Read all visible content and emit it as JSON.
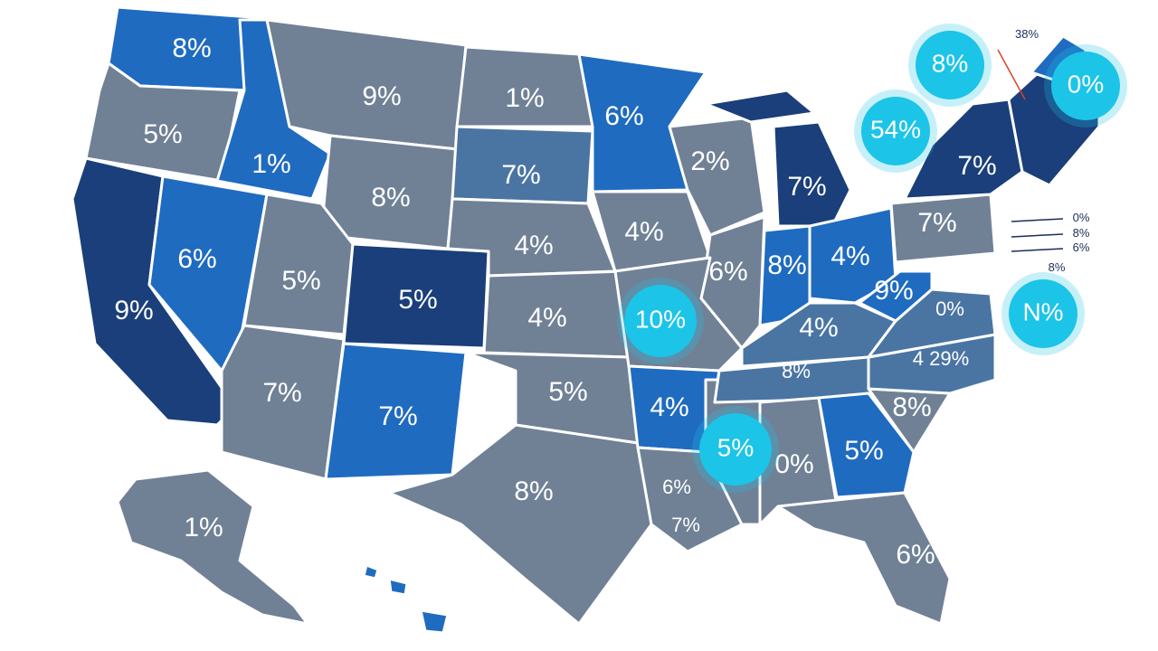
{
  "colors": {
    "gray": "#708196",
    "light_blue": "#1f6bc0",
    "mid_blue": "#4a75a3",
    "dark_blue": "#1a3f7a",
    "highlight": "#1cc4e8",
    "border": "#ffffff"
  },
  "states": [
    {
      "id": "WA",
      "label": "8%"
    },
    {
      "id": "OR",
      "label": "5%"
    },
    {
      "id": "CA",
      "label": "9%"
    },
    {
      "id": "ID",
      "label": "1%"
    },
    {
      "id": "NV",
      "label": "6%"
    },
    {
      "id": "MT",
      "label": "9%"
    },
    {
      "id": "WY",
      "label": "8%"
    },
    {
      "id": "UT",
      "label": "5%"
    },
    {
      "id": "AZ",
      "label": "7%"
    },
    {
      "id": "CO",
      "label": "5%"
    },
    {
      "id": "NM",
      "label": "7%"
    },
    {
      "id": "ND",
      "label": "1%"
    },
    {
      "id": "SD",
      "label": "7%"
    },
    {
      "id": "NE",
      "label": "4%"
    },
    {
      "id": "KS",
      "label": "4%"
    },
    {
      "id": "OK",
      "label": "5%"
    },
    {
      "id": "TX",
      "label": "8%"
    },
    {
      "id": "MN",
      "label": "6%"
    },
    {
      "id": "IA",
      "label": "4%"
    },
    {
      "id": "AR",
      "label": "4%"
    },
    {
      "id": "LA",
      "label": "7%"
    },
    {
      "id": "MS",
      "label": "6%"
    },
    {
      "id": "WI",
      "label": "2%"
    },
    {
      "id": "IL",
      "label": "6%"
    },
    {
      "id": "MI",
      "label": "7%"
    },
    {
      "id": "IN",
      "label": "8%"
    },
    {
      "id": "OH",
      "label": "4%"
    },
    {
      "id": "KY",
      "label": "4%"
    },
    {
      "id": "TN",
      "label": "8%"
    },
    {
      "id": "AL",
      "label": "0%"
    },
    {
      "id": "GA",
      "label": "5%"
    },
    {
      "id": "FL",
      "label": "6%"
    },
    {
      "id": "SC",
      "label": "8%"
    },
    {
      "id": "NC",
      "label": "4 29%"
    },
    {
      "id": "VA",
      "label": "0%"
    },
    {
      "id": "WV",
      "label": "9%"
    },
    {
      "id": "PA",
      "label": "7%"
    },
    {
      "id": "NY",
      "label": "7%"
    },
    {
      "id": "AK",
      "label": "1%"
    }
  ],
  "bubbles": [
    {
      "id": "MO",
      "label": "10%"
    },
    {
      "id": "MS-bubble",
      "label": "5%"
    },
    {
      "id": "GL",
      "label": "8%"
    },
    {
      "id": "GL2",
      "label": "54%"
    },
    {
      "id": "NE-bubble",
      "label": "0%"
    },
    {
      "id": "MID",
      "label": "N%"
    }
  ],
  "callouts": [
    {
      "id": "top",
      "label": "38%"
    },
    {
      "id": "c1",
      "label": "0%"
    },
    {
      "id": "c2",
      "label": "8%"
    },
    {
      "id": "c3",
      "label": "6%"
    },
    {
      "id": "c4",
      "label": "8%"
    }
  ]
}
